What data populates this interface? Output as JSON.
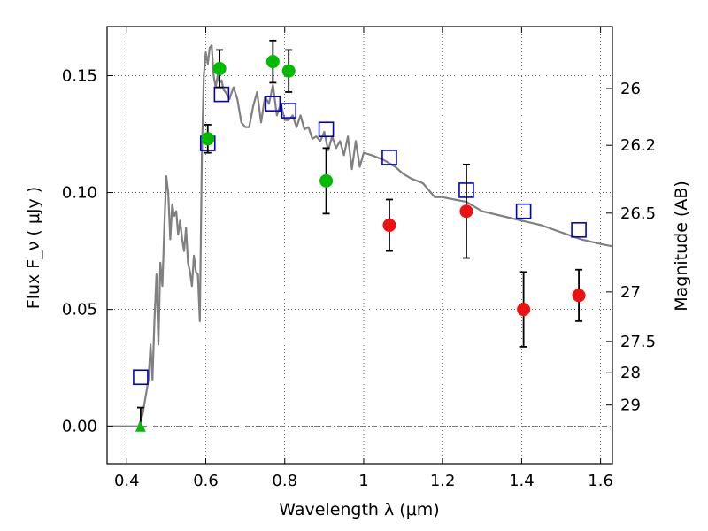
{
  "chart_data": {
    "type": "scatter",
    "xlabel": "Wavelength  λ (μm)",
    "ylabel": "Flux  F_ν  ( μJy )",
    "ylabel_right": "Magnitude (AB)",
    "xlim": [
      0.35,
      1.63
    ],
    "ylim": [
      -0.016,
      0.171
    ],
    "x_ticks": [
      0.4,
      0.6,
      0.8,
      1.0,
      1.2,
      1.4,
      1.6
    ],
    "x_tick_labels": [
      "0.4",
      "0.6",
      "0.8",
      "1",
      "1.2",
      "1.4",
      "1.6"
    ],
    "y_ticks": [
      0.0,
      0.05,
      0.1,
      0.15
    ],
    "y_tick_labels": [
      "0.00",
      "0.05",
      "0.10",
      "0.15"
    ],
    "right_ticks": [
      {
        "label": "26",
        "flux": 0.1445
      },
      {
        "label": "26.2",
        "flux": 0.1202
      },
      {
        "label": "26.5",
        "flux": 0.0912
      },
      {
        "label": "27",
        "flux": 0.0575
      },
      {
        "label": "27.5",
        "flux": 0.0363
      },
      {
        "label": "28",
        "flux": 0.0229
      },
      {
        "label": "29",
        "flux": 0.0091
      }
    ],
    "grid": true,
    "series": [
      {
        "marker": "line",
        "color": "#808080",
        "x": [
          0.35,
          0.43,
          0.44,
          0.455,
          0.46,
          0.465,
          0.47,
          0.475,
          0.48,
          0.485,
          0.49,
          0.495,
          0.5,
          0.505,
          0.51,
          0.515,
          0.52,
          0.525,
          0.53,
          0.535,
          0.54,
          0.545,
          0.55,
          0.555,
          0.56,
          0.565,
          0.57,
          0.575,
          0.58,
          0.585,
          0.59,
          0.595,
          0.6,
          0.605,
          0.61,
          0.615,
          0.62,
          0.625,
          0.63,
          0.635,
          0.64,
          0.645,
          0.65,
          0.66,
          0.67,
          0.68,
          0.69,
          0.7,
          0.71,
          0.72,
          0.73,
          0.74,
          0.75,
          0.76,
          0.77,
          0.78,
          0.79,
          0.8,
          0.81,
          0.82,
          0.83,
          0.84,
          0.85,
          0.86,
          0.87,
          0.88,
          0.89,
          0.9,
          0.91,
          0.92,
          0.93,
          0.94,
          0.95,
          0.96,
          0.97,
          0.98,
          0.99,
          1.0,
          1.02,
          1.05,
          1.08,
          1.1,
          1.12,
          1.15,
          1.18,
          1.2,
          1.23,
          1.26,
          1.28,
          1.3,
          1.35,
          1.4,
          1.45,
          1.5,
          1.55,
          1.6,
          1.63
        ],
        "y": [
          0.0,
          0.0,
          0.005,
          0.02,
          0.035,
          0.02,
          0.045,
          0.065,
          0.035,
          0.07,
          0.06,
          0.085,
          0.107,
          0.1,
          0.08,
          0.095,
          0.09,
          0.092,
          0.082,
          0.088,
          0.08,
          0.075,
          0.085,
          0.07,
          0.066,
          0.06,
          0.073,
          0.066,
          0.065,
          0.045,
          0.115,
          0.15,
          0.16,
          0.155,
          0.162,
          0.163,
          0.15,
          0.145,
          0.15,
          0.147,
          0.148,
          0.144,
          0.143,
          0.14,
          0.145,
          0.14,
          0.13,
          0.128,
          0.128,
          0.137,
          0.143,
          0.13,
          0.141,
          0.138,
          0.146,
          0.133,
          0.138,
          0.131,
          0.131,
          0.133,
          0.128,
          0.133,
          0.127,
          0.128,
          0.123,
          0.124,
          0.122,
          0.126,
          0.118,
          0.124,
          0.119,
          0.122,
          0.116,
          0.124,
          0.11,
          0.122,
          0.111,
          0.117,
          0.116,
          0.114,
          0.111,
          0.108,
          0.106,
          0.104,
          0.098,
          0.098,
          0.097,
          0.096,
          0.094,
          0.092,
          0.09,
          0.088,
          0.086,
          0.083,
          0.08,
          0.078,
          0.077
        ]
      },
      {
        "marker": "open-square",
        "color": "#0000cc",
        "x": [
          0.435,
          0.605,
          0.64,
          0.77,
          0.81,
          0.905,
          1.065,
          1.26,
          1.405,
          1.545
        ],
        "y": [
          0.021,
          0.121,
          0.142,
          0.138,
          0.135,
          0.127,
          0.115,
          0.101,
          0.092,
          0.084
        ]
      },
      {
        "marker": "filled-circle",
        "color": "#00bb00",
        "x": [
          0.605,
          0.635,
          0.77,
          0.81,
          0.905
        ],
        "y": [
          0.123,
          0.153,
          0.156,
          0.152,
          0.105
        ],
        "yerr": [
          0.006,
          0.008,
          0.009,
          0.009,
          0.014
        ]
      },
      {
        "marker": "filled-circle",
        "color": "#ee1111",
        "x": [
          1.065,
          1.26,
          1.405,
          1.545
        ],
        "y": [
          0.086,
          0.092,
          0.05,
          0.056
        ],
        "yerr": [
          0.011,
          0.02,
          0.016,
          0.011
        ]
      },
      {
        "marker": "filled-triangle",
        "color": "#00bb00",
        "x": [
          0.435
        ],
        "y": [
          0.0
        ],
        "yerr_upper": [
          0.008
        ]
      }
    ]
  }
}
